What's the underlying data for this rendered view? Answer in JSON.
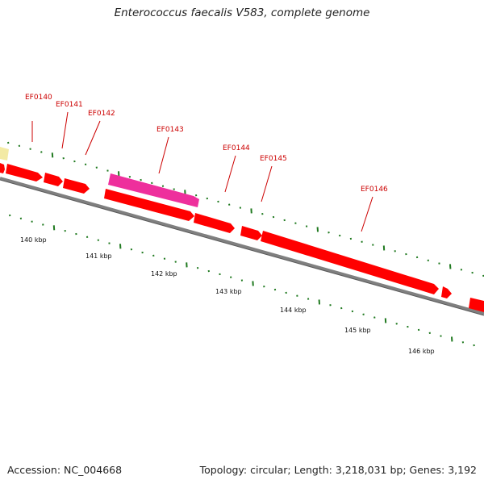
{
  "title": "Enterococcus faecalis V583, complete genome",
  "footer": {
    "accession": "Accession: NC_004668",
    "summary": "Topology: circular; Length: 3,218,031 bp; Genes: 3,192"
  },
  "colors": {
    "gene": "#ff0000",
    "gene_highlight": "#ee2f9c",
    "feature_other": "#f3eaa4",
    "backbone": "#808080",
    "tick": "#207a20",
    "label": "#cc0000"
  },
  "genes": [
    {
      "name": "EF0140"
    },
    {
      "name": "EF0141"
    },
    {
      "name": "EF0142"
    },
    {
      "name": "EF0143"
    },
    {
      "name": "EF0144"
    },
    {
      "name": "EF0145"
    },
    {
      "name": "EF0146"
    }
  ],
  "scale_labels": [
    "140 kbp",
    "141 kbp",
    "142 kbp",
    "143 kbp",
    "144 kbp",
    "145 kbp",
    "146 kbp"
  ]
}
